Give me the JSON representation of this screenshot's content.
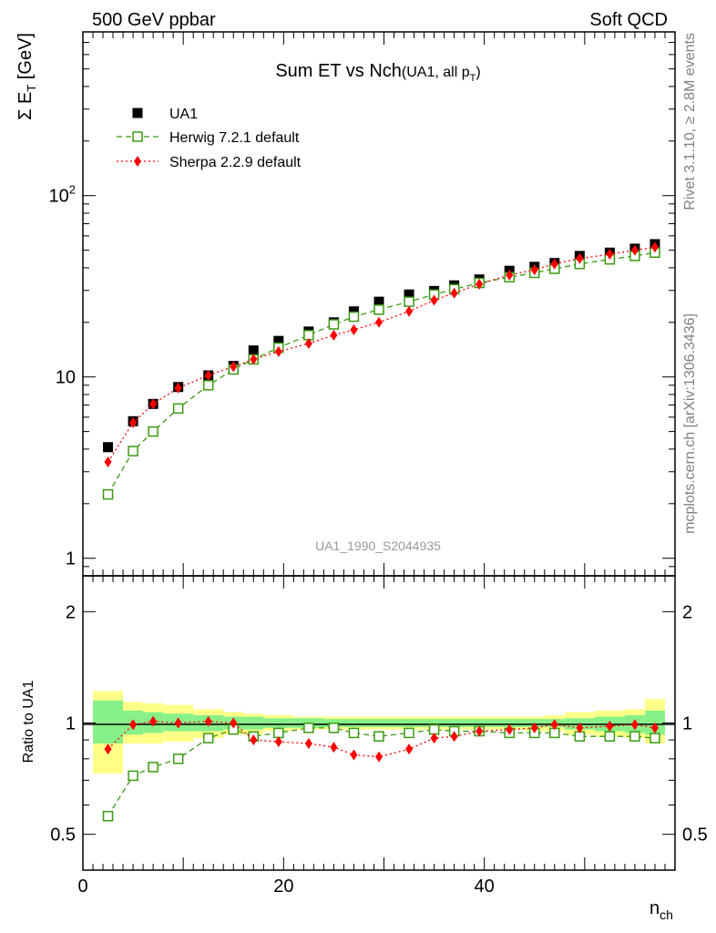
{
  "header": {
    "left": "500 GeV ppbar",
    "right": "Soft QCD"
  },
  "side_labels": {
    "top": "Rivet 3.1.10, ≥ 2.8M events",
    "bottom": "mcplots.cern.ch [arXiv:1306.3436]"
  },
  "watermark": "UA1_1990_S2044935",
  "colors": {
    "data": "#000000",
    "herwig": "#3a9a12",
    "sherpa": "#ff0000",
    "band_inner": "#88f088",
    "band_outer": "#ffff88"
  },
  "chart_data": [
    {
      "type": "scatter",
      "panel": "main",
      "title": "Sum ET vs Nch",
      "title_suffix": "(UA1, all p",
      "title_suffix_sub": "T",
      "title_suffix_end": ")",
      "ylabel": "Σ E",
      "ylabel_sub": "T",
      "ylabel_unit": " [GeV]",
      "yscale": "log",
      "xlim": [
        0,
        59
      ],
      "ylim": [
        0.8,
        800
      ],
      "yticks": [
        {
          "value": 1,
          "label": "1"
        },
        {
          "value": 10,
          "label": "10"
        },
        {
          "value": 100,
          "label": "10",
          "sup": "2"
        }
      ],
      "x": [
        2.5,
        5,
        7,
        9.5,
        12.5,
        15,
        17,
        19.5,
        22.5,
        25,
        27,
        29.5,
        32.5,
        35,
        37,
        39.5,
        42.5,
        45,
        47,
        49.5,
        52.5,
        55,
        57
      ],
      "series": [
        {
          "name": "UA1",
          "marker": "square-filled",
          "line": "none",
          "values": [
            4.1,
            5.7,
            7.1,
            8.8,
            10.2,
            11.5,
            14.0,
            15.8,
            17.8,
            20.0,
            23.0,
            26.0,
            28.5,
            29.8,
            32.0,
            34.5,
            38.5,
            40.5,
            42.5,
            46.5,
            48.5,
            51.0,
            54.0
          ]
        },
        {
          "name": "Herwig 7.2.1 default",
          "marker": "square-open",
          "line": "dashed",
          "values": [
            2.25,
            3.9,
            5.0,
            6.7,
            9.0,
            11.0,
            12.5,
            14.5,
            17.0,
            19.5,
            21.5,
            23.5,
            26.0,
            28.5,
            30.5,
            33.0,
            35.5,
            37.5,
            39.5,
            42.0,
            44.5,
            46.5,
            48.5
          ]
        },
        {
          "name": "Sherpa 2.2.9 default",
          "marker": "diamond-filled",
          "line": "dotted",
          "values": [
            3.4,
            5.6,
            7.1,
            8.7,
            10.2,
            11.4,
            12.5,
            13.8,
            15.3,
            17.0,
            18.2,
            20.0,
            23.0,
            26.5,
            29.0,
            32.5,
            36.5,
            39.0,
            42.0,
            45.0,
            47.5,
            50.0,
            52.0
          ]
        }
      ]
    },
    {
      "type": "scatter",
      "panel": "ratio",
      "xlabel": "n",
      "xlabel_sub": "ch",
      "ylabel": "Ratio to UA1",
      "yscale": "log",
      "xlim": [
        0,
        59
      ],
      "ylim": [
        0.4,
        2.5
      ],
      "xticks": [
        0,
        20,
        40
      ],
      "yticks": [
        {
          "value": 0.5,
          "label": "0.5"
        },
        {
          "value": 1,
          "label": "1"
        },
        {
          "value": 2,
          "label": "2"
        }
      ],
      "x": [
        2.5,
        5,
        7,
        9.5,
        12.5,
        15,
        17,
        19.5,
        22.5,
        25,
        27,
        29.5,
        32.5,
        35,
        37,
        39.5,
        42.5,
        45,
        47,
        49.5,
        52.5,
        55,
        57
      ],
      "bands": {
        "edges": [
          1,
          4,
          6,
          8,
          11,
          14,
          16,
          18,
          21,
          24,
          26,
          28,
          31,
          34,
          36,
          38,
          41,
          44,
          46,
          48,
          51,
          54,
          56,
          58
        ],
        "inner": [
          [
            0.88,
            1.15
          ],
          [
            0.93,
            1.08
          ],
          [
            0.94,
            1.07
          ],
          [
            0.95,
            1.06
          ],
          [
            0.95,
            1.05
          ],
          [
            0.96,
            1.04
          ],
          [
            0.96,
            1.04
          ],
          [
            0.97,
            1.03
          ],
          [
            0.97,
            1.03
          ],
          [
            0.975,
            1.025
          ],
          [
            0.975,
            1.025
          ],
          [
            0.975,
            1.025
          ],
          [
            0.975,
            1.025
          ],
          [
            0.975,
            1.025
          ],
          [
            0.975,
            1.025
          ],
          [
            0.975,
            1.025
          ],
          [
            0.975,
            1.025
          ],
          [
            0.975,
            1.025
          ],
          [
            0.975,
            1.025
          ],
          [
            0.96,
            1.03
          ],
          [
            0.95,
            1.04
          ],
          [
            0.94,
            1.05
          ],
          [
            0.93,
            1.08
          ]
        ],
        "outer": [
          [
            0.73,
            1.22
          ],
          [
            0.88,
            1.14
          ],
          [
            0.88,
            1.13
          ],
          [
            0.89,
            1.12
          ],
          [
            0.91,
            1.09
          ],
          [
            0.93,
            1.07
          ],
          [
            0.93,
            1.06
          ],
          [
            0.95,
            1.05
          ],
          [
            0.96,
            1.04
          ],
          [
            0.96,
            1.04
          ],
          [
            0.96,
            1.04
          ],
          [
            0.96,
            1.04
          ],
          [
            0.96,
            1.04
          ],
          [
            0.96,
            1.04
          ],
          [
            0.96,
            1.04
          ],
          [
            0.96,
            1.04
          ],
          [
            0.96,
            1.04
          ],
          [
            0.95,
            1.04
          ],
          [
            0.95,
            1.05
          ],
          [
            0.93,
            1.07
          ],
          [
            0.92,
            1.08
          ],
          [
            0.91,
            1.09
          ],
          [
            0.88,
            1.16
          ]
        ]
      },
      "series": [
        {
          "name": "Herwig 7.2.1 default",
          "marker": "square-open",
          "line": "dashed",
          "values": [
            0.56,
            0.72,
            0.76,
            0.8,
            0.91,
            0.96,
            0.92,
            0.94,
            0.97,
            0.97,
            0.94,
            0.92,
            0.94,
            0.96,
            0.95,
            0.95,
            0.94,
            0.94,
            0.94,
            0.92,
            0.92,
            0.92,
            0.91
          ]
        },
        {
          "name": "Sherpa 2.2.9 default",
          "marker": "diamond-filled",
          "line": "dotted",
          "values": [
            0.85,
            0.99,
            1.01,
            1.0,
            1.01,
            1.0,
            0.9,
            0.89,
            0.88,
            0.86,
            0.82,
            0.81,
            0.85,
            0.91,
            0.92,
            0.95,
            0.96,
            0.97,
            0.99,
            0.97,
            0.98,
            0.99,
            0.97
          ]
        }
      ]
    }
  ]
}
